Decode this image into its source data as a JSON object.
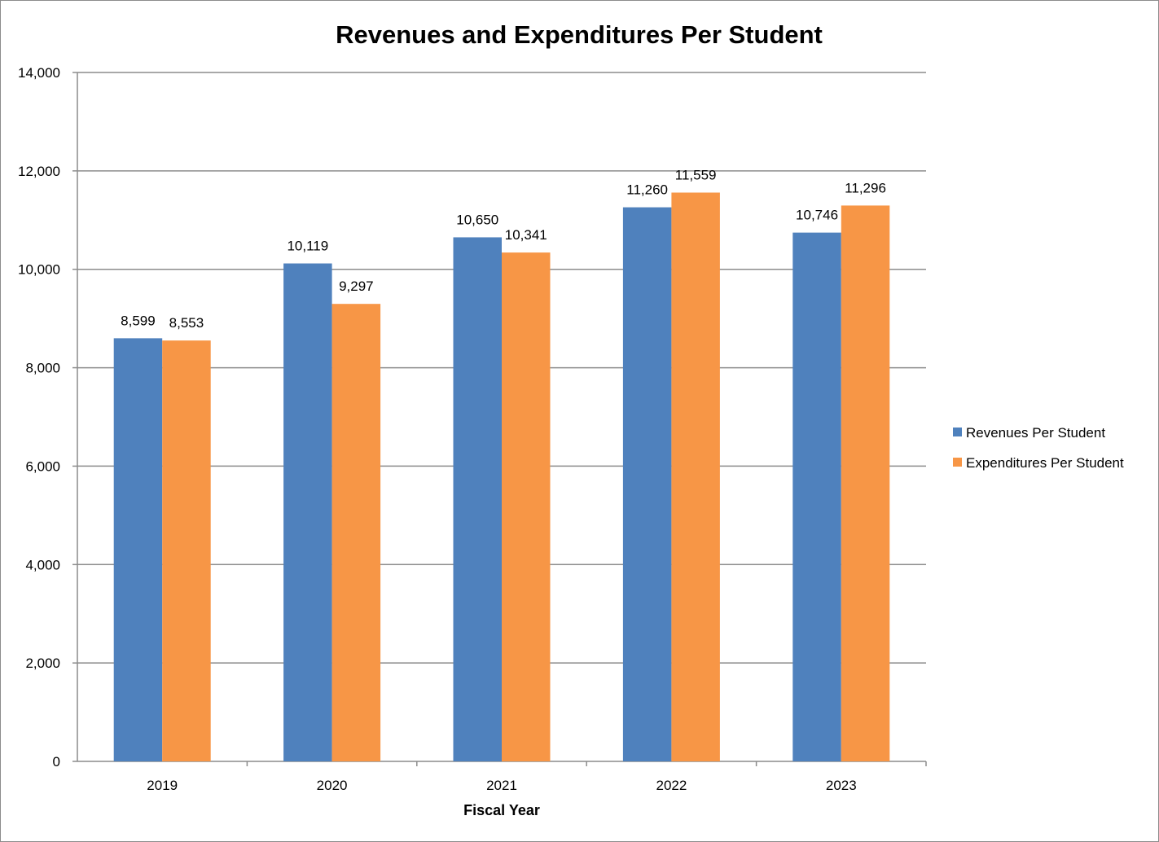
{
  "chart_data": {
    "type": "bar",
    "title": "Revenues and Expenditures Per Student",
    "xlabel": "Fiscal Year",
    "ylabel": "",
    "categories": [
      "2019",
      "2020",
      "2021",
      "2022",
      "2023"
    ],
    "series": [
      {
        "name": "Revenues Per Student",
        "values": [
          8599,
          10119,
          10650,
          11260,
          10746
        ],
        "labels": [
          "8,599",
          "10,119",
          "10,650",
          "11,260",
          "10,746"
        ],
        "color": "#4f81bd"
      },
      {
        "name": "Expenditures Per Student",
        "values": [
          8553,
          9297,
          10341,
          11559,
          11296
        ],
        "labels": [
          "8,553",
          "9,297",
          "10,341",
          "11,559",
          "11,296"
        ],
        "color": "#f79646"
      }
    ],
    "ylim": [
      0,
      14000
    ],
    "yticks": [
      0,
      2000,
      4000,
      6000,
      8000,
      10000,
      12000,
      14000
    ],
    "ytick_labels": [
      "0",
      "2,000",
      "4,000",
      "6,000",
      "8,000",
      "10,000",
      "12,000",
      "14,000"
    ],
    "grid": true,
    "legend_position": "right"
  }
}
